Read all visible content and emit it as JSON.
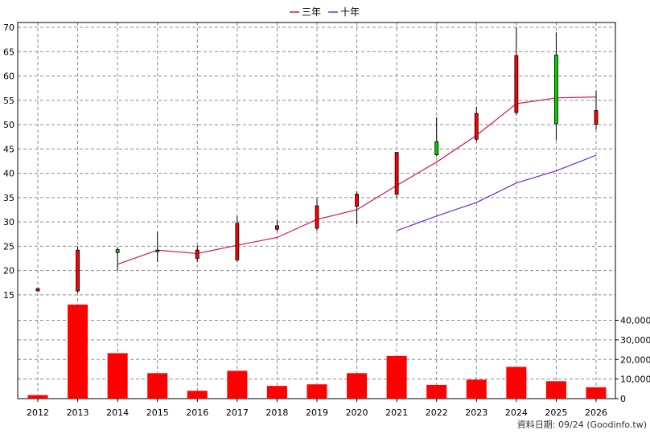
{
  "chart_data": {
    "type": "candlestick+bar",
    "x": [
      "2012",
      "2013",
      "2014",
      "2015",
      "2016",
      "2017",
      "2018",
      "2019",
      "2020",
      "2021",
      "2022",
      "2023",
      "2024",
      "2025",
      "2026"
    ],
    "price_ylim": [
      13,
      71
    ],
    "price_ticks": [
      15,
      20,
      25,
      30,
      35,
      40,
      45,
      50,
      55,
      60,
      65,
      70
    ],
    "candles": [
      {
        "open": 15.8,
        "close": 16.3,
        "high": 16.4,
        "low": 15.7
      },
      {
        "open": 15.8,
        "close": 24.2,
        "high": 25.0,
        "low": 15.4
      },
      {
        "open": 24.3,
        "close": 23.7,
        "high": 24.8,
        "low": 20.0
      },
      {
        "open": 24.2,
        "close": 24.0,
        "high": 28.0,
        "low": 21.8
      },
      {
        "open": 22.5,
        "close": 24.2,
        "high": 25.2,
        "low": 21.8
      },
      {
        "open": 22.2,
        "close": 29.7,
        "high": 31.2,
        "low": 21.8
      },
      {
        "open": 28.5,
        "close": 29.2,
        "high": 30.5,
        "low": 28.0
      },
      {
        "open": 28.7,
        "close": 33.3,
        "high": 34.8,
        "low": 28.2
      },
      {
        "open": 33.2,
        "close": 35.7,
        "high": 36.3,
        "low": 29.5
      },
      {
        "open": 35.7,
        "close": 44.3,
        "high": 44.3,
        "low": 35.0
      },
      {
        "open": 46.5,
        "close": 43.8,
        "high": 51.5,
        "low": 43.5
      },
      {
        "open": 47.0,
        "close": 52.3,
        "high": 53.7,
        "low": 46.5
      },
      {
        "open": 52.5,
        "close": 64.2,
        "high": 70.0,
        "low": 52.0
      },
      {
        "open": 64.3,
        "close": 50.2,
        "high": 69.0,
        "low": 46.8
      },
      {
        "open": 50.1,
        "close": 52.9,
        "high": 57.0,
        "low": 49.0
      }
    ],
    "series": [
      {
        "name": "三年",
        "color": "#d4145a",
        "values": [
          null,
          null,
          21.3,
          24.2,
          23.5,
          25.2,
          26.8,
          30.5,
          32.5,
          37.5,
          42.3,
          47.8,
          54.3,
          55.5,
          55.7
        ]
      },
      {
        "name": "十年",
        "color": "#6a2fd6",
        "values": [
          null,
          null,
          null,
          null,
          null,
          null,
          null,
          null,
          null,
          28.2,
          31.2,
          34.0,
          38.0,
          40.5,
          43.7
        ]
      }
    ],
    "volume": {
      "values": [
        1800,
        48000,
        23200,
        13000,
        4000,
        14200,
        6500,
        7300,
        13000,
        21800,
        7000,
        9700,
        16200,
        8900,
        5800
      ],
      "ylim": [
        0,
        48000
      ],
      "ticks": [
        0,
        10000,
        20000,
        30000,
        40000
      ],
      "tick_labels": [
        "0",
        "10,000",
        "20,000",
        "30,000",
        "40,000"
      ],
      "color": "#ff0000"
    },
    "candle_up_color": "#ff0000",
    "candle_down_color": "#00cc00",
    "legend_position": "top-center",
    "grid": true
  },
  "source_text": "資料日期: 09/24  (Goodinfo.tw)"
}
